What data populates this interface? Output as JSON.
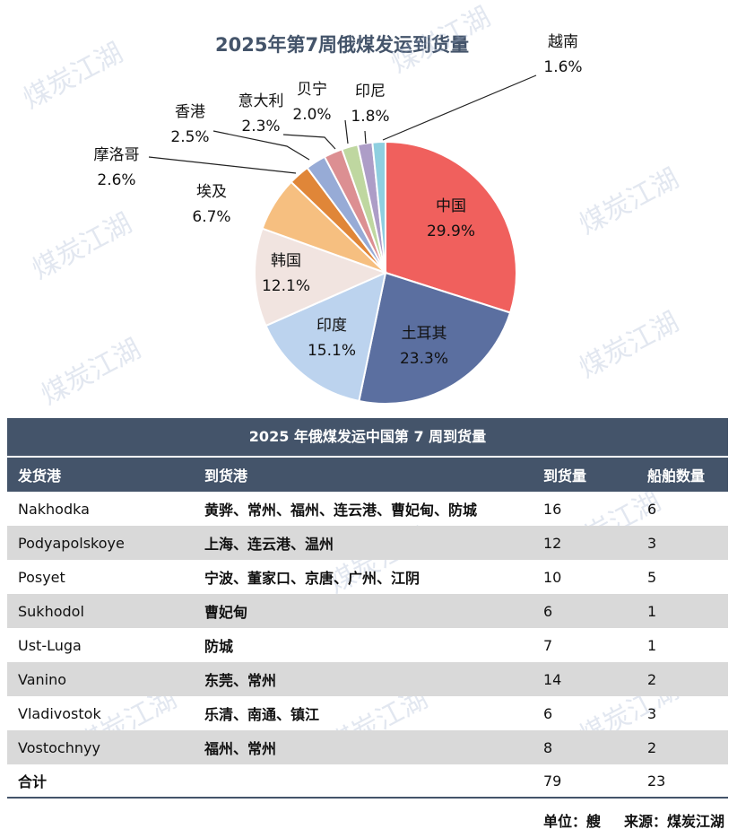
{
  "chart_data": {
    "type": "pie",
    "title": "2025年第7周俄煤发运到货量",
    "slices": [
      {
        "label": "中国",
        "pct": "29.9%",
        "value": 29.9,
        "color": "#f0605d"
      },
      {
        "label": "土耳其",
        "pct": "23.3%",
        "value": 23.3,
        "color": "#5b6fa0"
      },
      {
        "label": "印度",
        "pct": "15.1%",
        "value": 15.1,
        "color": "#bcd3ee"
      },
      {
        "label": "韩国",
        "pct": "12.1%",
        "value": 12.1,
        "color": "#f1e4e0"
      },
      {
        "label": "埃及",
        "pct": "6.7%",
        "value": 6.7,
        "color": "#f6bf80"
      },
      {
        "label": "摩洛哥",
        "pct": "2.6%",
        "value": 2.6,
        "color": "#e08638"
      },
      {
        "label": "香港",
        "pct": "2.5%",
        "value": 2.5,
        "color": "#97abd6"
      },
      {
        "label": "意大利",
        "pct": "2.3%",
        "value": 2.3,
        "color": "#dc8f92"
      },
      {
        "label": "贝宁",
        "pct": "2.0%",
        "value": 2.0,
        "color": "#bfd7a0"
      },
      {
        "label": "印尼",
        "pct": "1.8%",
        "value": 1.8,
        "color": "#ad9dc7"
      },
      {
        "label": "越南",
        "pct": "1.6%",
        "value": 1.6,
        "color": "#8fcfe0"
      }
    ]
  },
  "watermark": "煤炭江湖",
  "table": {
    "title": "2025 年俄煤发运中国第 7 周到货量",
    "headers": [
      "发货港",
      "到货港",
      "到货量",
      "船舶数量"
    ],
    "rows": [
      [
        "Nakhodka",
        "黄骅、常州、福州、连云港、曹妃甸、防城",
        "16",
        "6"
      ],
      [
        "Podyapolskoye",
        "上海、连云港、温州",
        "12",
        "3"
      ],
      [
        "Posyet",
        "宁波、董家口、京唐、广州、江阴",
        "10",
        "5"
      ],
      [
        "Sukhodol",
        "曹妃甸",
        "6",
        "1"
      ],
      [
        "Ust-Luga",
        "防城",
        "7",
        "1"
      ],
      [
        "Vanino",
        "东莞、常州",
        "14",
        "2"
      ],
      [
        "Vladivostok",
        "乐清、南通、镇江",
        "6",
        "3"
      ],
      [
        "Vostochnyy",
        "福州、常州",
        "8",
        "2"
      ]
    ],
    "total": [
      "合计",
      "",
      "79",
      "23"
    ]
  },
  "footer": {
    "unit": "单位：艘",
    "source": "来源：煤炭江湖"
  }
}
